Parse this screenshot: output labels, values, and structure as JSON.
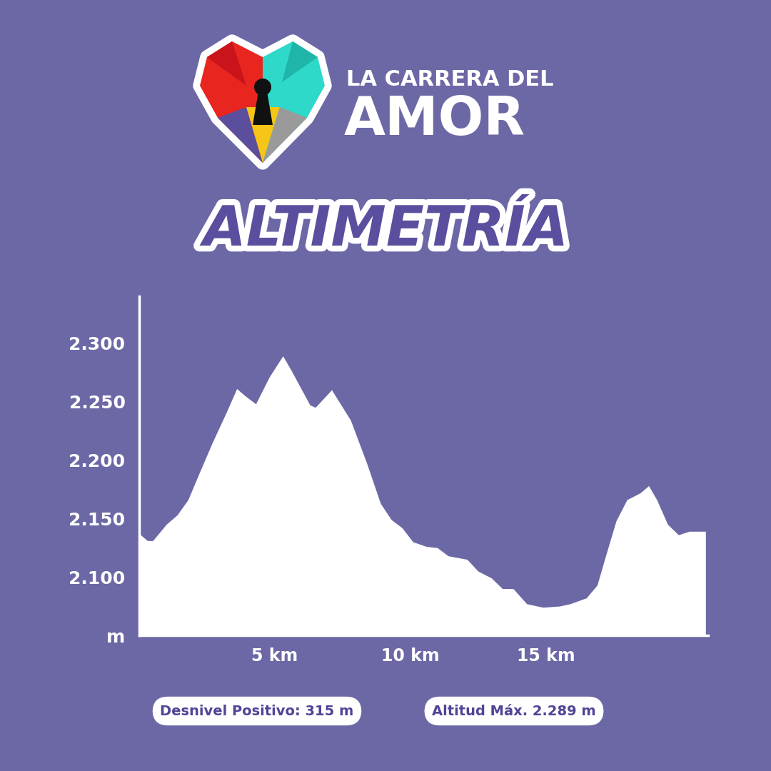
{
  "chart_data": {
    "type": "area",
    "title": "ALTIMETRÍA",
    "brand": [
      "LA CARRERA DEL",
      "AMOR"
    ],
    "annotations": [
      "Desnivel Positivo: 315 m",
      "Altitud Máx. 2.289 m"
    ],
    "x": [
      0,
      0.3,
      0.5,
      1.0,
      1.4,
      1.8,
      2.2,
      2.7,
      3.2,
      3.6,
      3.9,
      4.3,
      4.8,
      5.3,
      5.6,
      6.3,
      6.5,
      7.1,
      7.8,
      8.4,
      8.9,
      9.3,
      9.7,
      10.1,
      10.6,
      11.0,
      11.4,
      12.1,
      12.5,
      13.0,
      13.4,
      13.8,
      14.3,
      14.9,
      15.5,
      15.9,
      16.5,
      16.9,
      17.2,
      17.6,
      18.0,
      18.5,
      18.8,
      19.1,
      19.5,
      19.9,
      20.3,
      20.6,
      20.9
    ],
    "values": [
      2137,
      2131,
      2131,
      2145,
      2153,
      2166,
      2188,
      2215,
      2240,
      2261,
      2255,
      2248,
      2271,
      2289,
      2277,
      2247,
      2245,
      2260,
      2234,
      2197,
      2163,
      2149,
      2142,
      2130,
      2126,
      2125,
      2118,
      2115,
      2105,
      2099,
      2090,
      2090,
      2077,
      2074,
      2075,
      2077,
      2082,
      2093,
      2117,
      2148,
      2166,
      2172,
      2178,
      2166,
      2145,
      2136,
      2139,
      2139,
      2139
    ],
    "color": "#ffffff",
    "xlim": [
      0,
      21
    ],
    "xticks": [
      {
        "value": 5,
        "label": "5 km"
      },
      {
        "value": 10,
        "label": "10 km"
      },
      {
        "value": 15,
        "label": "15 km"
      }
    ],
    "ylim": [
      2050,
      2340
    ],
    "yticks": [
      {
        "value": 2050,
        "label": "m"
      },
      {
        "value": 2100,
        "label": "2.100"
      },
      {
        "value": 2150,
        "label": "2.150"
      },
      {
        "value": 2200,
        "label": "2.200"
      },
      {
        "value": 2250,
        "label": "2.250"
      },
      {
        "value": 2300,
        "label": "2.300"
      }
    ],
    "grid": false
  }
}
